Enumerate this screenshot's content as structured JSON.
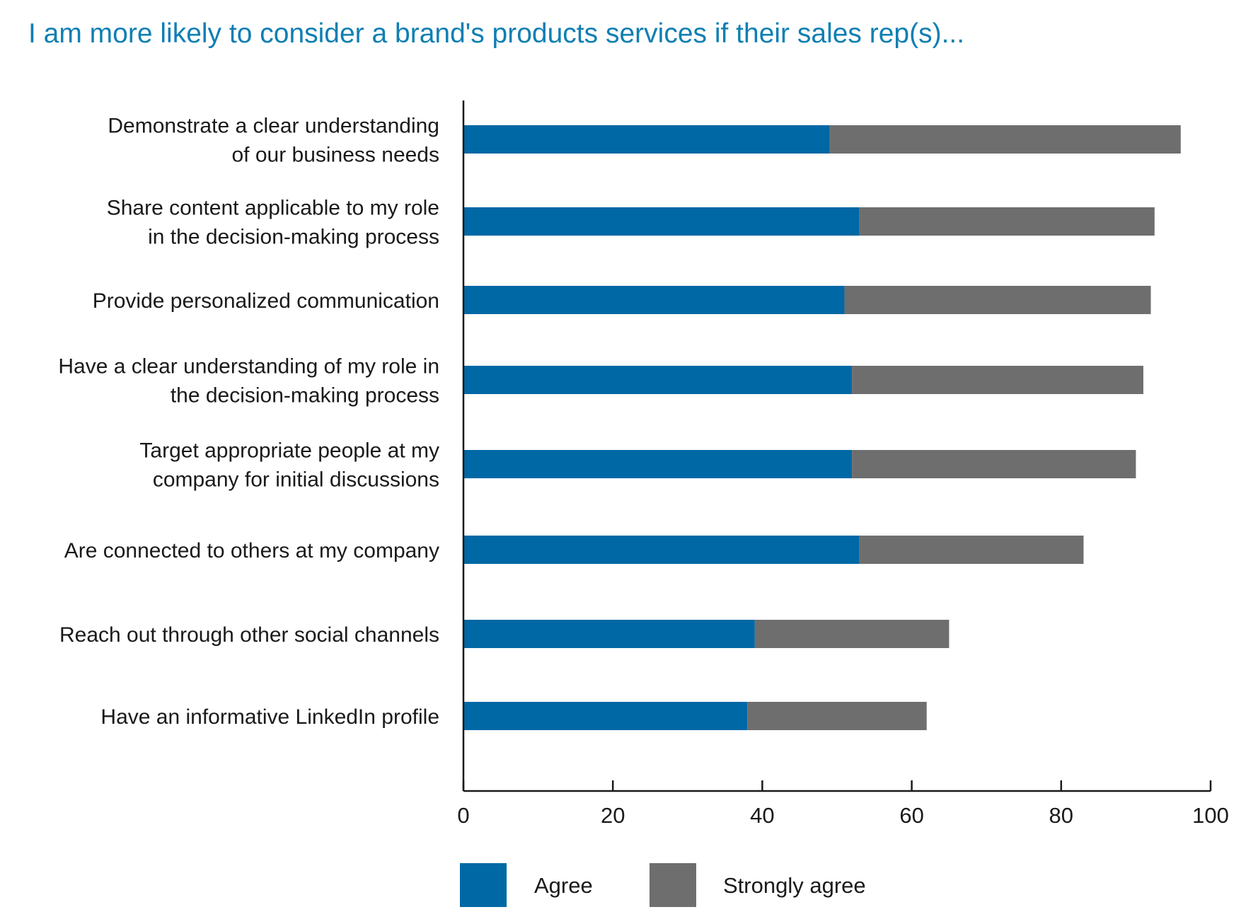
{
  "chart_data": {
    "type": "bar",
    "orientation": "horizontal",
    "stacked": true,
    "title": "I am more likely to consider a brand's products services if their sales rep(s)...",
    "categories": [
      [
        "Demonstrate a clear understanding",
        "of our business needs"
      ],
      [
        "Share content applicable to my role",
        "in the decision-making process"
      ],
      [
        "Provide personalized communication"
      ],
      [
        "Have a clear understanding of my role in",
        "the decision-making process"
      ],
      [
        "Target appropriate people at my",
        "company for initial discussions"
      ],
      [
        "Are connected to others at my company"
      ],
      [
        "Reach out through other social channels"
      ],
      [
        "Have an informative LinkedIn profile"
      ]
    ],
    "series": [
      {
        "name": "Agree",
        "color": "#0068a5",
        "values": [
          49,
          53,
          51,
          52,
          52,
          53,
          39,
          38
        ]
      },
      {
        "name": "Strongly agree",
        "color": "#6e6e6e",
        "values": [
          47,
          39.5,
          41,
          39,
          38,
          30,
          26,
          24
        ]
      }
    ],
    "xlim": [
      0,
      100
    ],
    "xticks": [
      0,
      20,
      40,
      60,
      80,
      100
    ],
    "xlabel": "",
    "ylabel": "",
    "grid": false,
    "legend_position": "bottom"
  }
}
